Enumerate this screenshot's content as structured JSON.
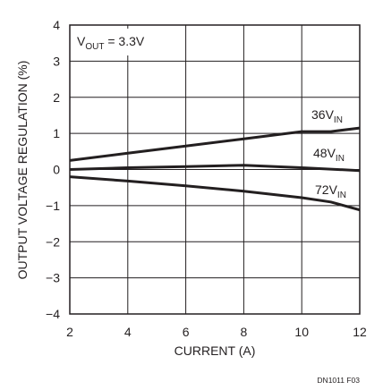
{
  "chart_data": {
    "type": "line",
    "xlabel": "CURRENT (A)",
    "ylabel": "OUTPUT VOLTAGE REGULATION (%)",
    "xlim": [
      2,
      12
    ],
    "ylim": [
      -4,
      4
    ],
    "xticks": [
      "2",
      "4",
      "6",
      "8",
      "10",
      "12"
    ],
    "yticks": [
      "4",
      "3",
      "2",
      "1",
      "0",
      "−1",
      "−2",
      "−3",
      "−4"
    ],
    "grid": true,
    "annotation": {
      "main": "V",
      "sub": "OUT",
      "tail": " = 3.3V"
    },
    "series": [
      {
        "name": "36VIN",
        "label_main": "36V",
        "label_sub": "IN",
        "x": [
          2,
          4,
          6,
          8,
          10,
          11,
          12
        ],
        "y": [
          0.25,
          0.45,
          0.65,
          0.85,
          1.05,
          1.05,
          1.15
        ]
      },
      {
        "name": "48VIN",
        "label_main": "48V",
        "label_sub": "IN",
        "x": [
          2,
          4,
          6,
          8,
          10,
          12
        ],
        "y": [
          0.0,
          0.05,
          0.08,
          0.12,
          0.05,
          -0.03
        ]
      },
      {
        "name": "72VIN",
        "label_main": "72V",
        "label_sub": "IN",
        "x": [
          2,
          4,
          6,
          8,
          10,
          11,
          12
        ],
        "y": [
          -0.2,
          -0.32,
          -0.45,
          -0.6,
          -0.78,
          -0.9,
          -1.12
        ]
      }
    ],
    "figure_id": "DN1011 F03"
  }
}
